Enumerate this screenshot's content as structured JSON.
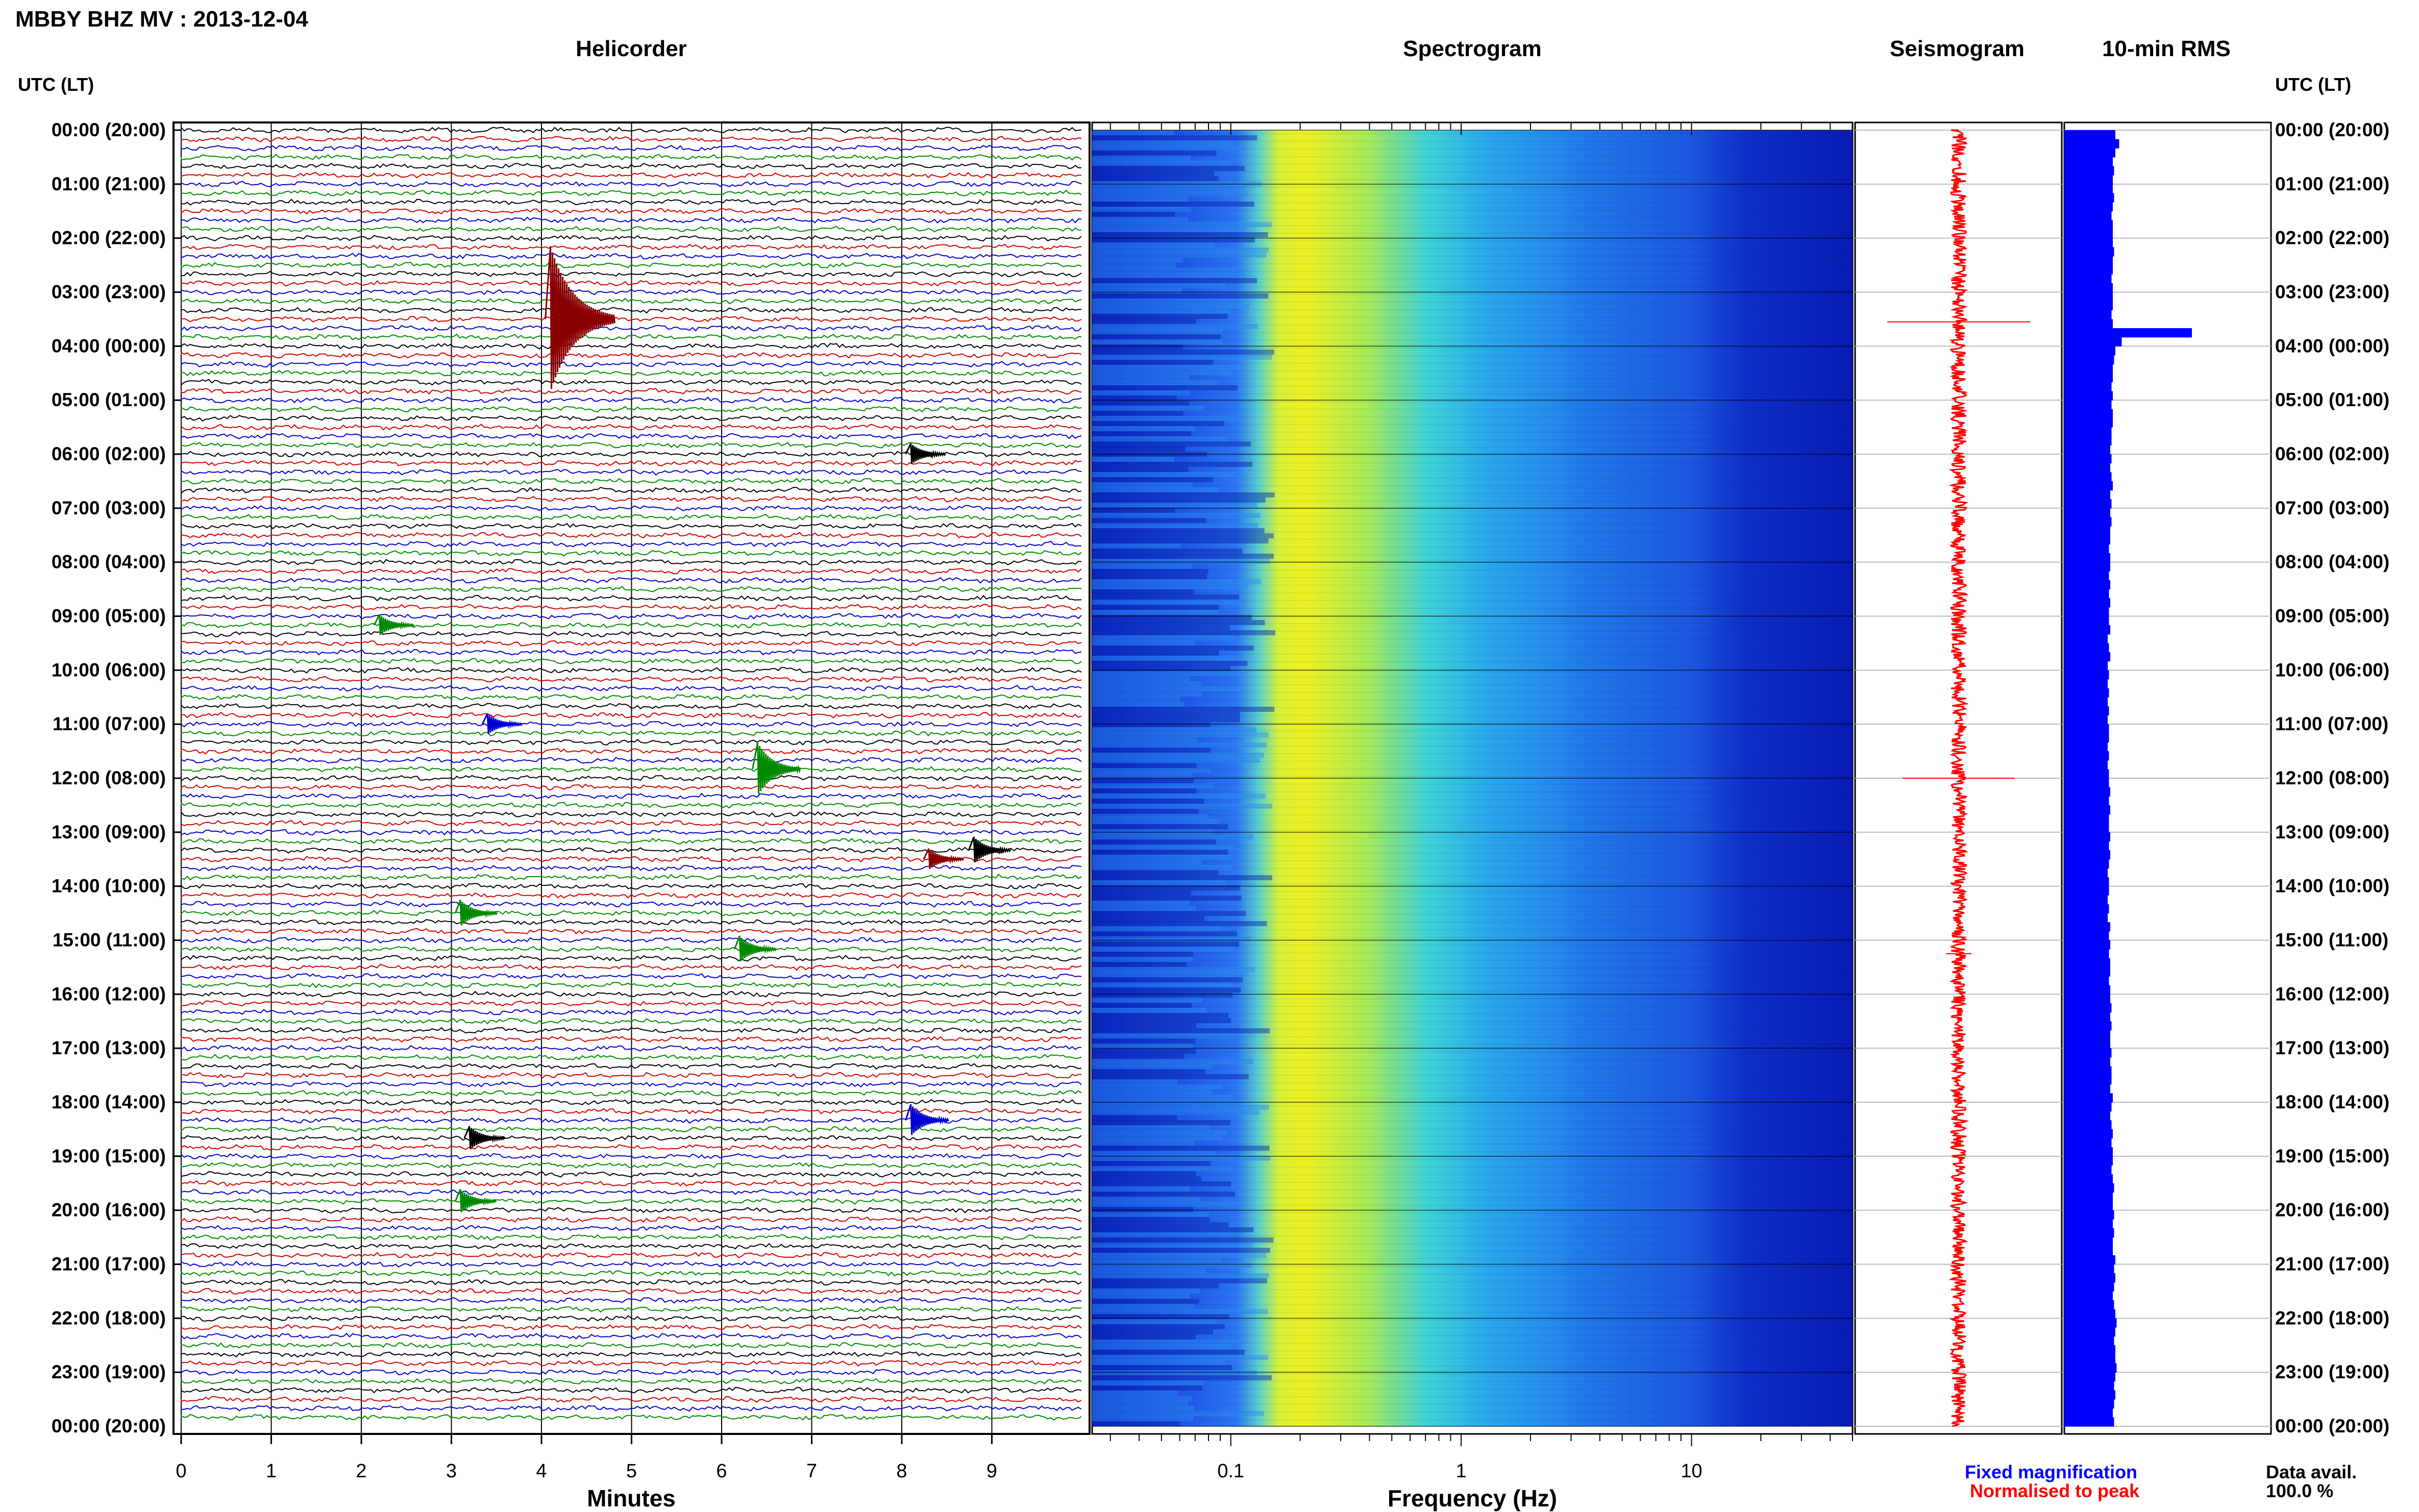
{
  "header": {
    "title": "MBBY BHZ MV : 2013-12-04"
  },
  "panels": {
    "helicorder": "Helicorder",
    "spectrogram": "Spectrogram",
    "seismogram": "Seismogram",
    "rms": "10-min RMS"
  },
  "axis": {
    "utc_label": "UTC (LT)",
    "minutes_label": "Minutes",
    "freq_label": "Frequency (Hz)"
  },
  "legend": {
    "fixed": "Fixed magnification",
    "normalised": "Normalised to peak",
    "data_avail_label": "Data avail.",
    "data_avail_value": "100.0 %"
  },
  "colors": {
    "trace_cycle": [
      "#000000",
      "#d40000",
      "#0000d4",
      "#008a00"
    ],
    "fixed": "#0000ff",
    "normalised": "#ff0000",
    "rms_bar": "#0000ff"
  },
  "chart_data": [
    {
      "type": "line",
      "name": "helicorder",
      "title": "Helicorder",
      "xlabel": "Minutes",
      "ylabel": "UTC (LT)",
      "xlim": [
        0,
        10
      ],
      "x_ticks": [
        0,
        1,
        2,
        3,
        4,
        5,
        6,
        7,
        8,
        9
      ],
      "y_tick_labels": [
        "00:00 (20:00)",
        "01:00 (21:00)",
        "02:00 (22:00)",
        "03:00 (23:00)",
        "04:00 (00:00)",
        "05:00 (01:00)",
        "06:00 (02:00)",
        "07:00 (03:00)",
        "08:00 (04:00)",
        "09:00 (05:00)",
        "10:00 (06:00)",
        "11:00 (07:00)",
        "12:00 (08:00)",
        "13:00 (09:00)",
        "14:00 (10:00)",
        "15:00 (11:00)",
        "16:00 (12:00)",
        "17:00 (13:00)",
        "18:00 (14:00)",
        "19:00 (15:00)",
        "20:00 (16:00)",
        "21:00 (17:00)",
        "22:00 (18:00)",
        "23:00 (19:00)",
        "00:00 (20:00)"
      ],
      "traces_per_hour": 6,
      "events": [
        {
          "hour": 3.5,
          "minute": 4.1,
          "amp": 5.5
        },
        {
          "hour": 6.0,
          "minute": 8.1,
          "amp": 0.8
        },
        {
          "hour": 9.1,
          "minute": 2.2,
          "amp": 0.8
        },
        {
          "hour": 11.0,
          "minute": 3.4,
          "amp": 0.8
        },
        {
          "hour": 11.8,
          "minute": 6.4,
          "amp": 2.0
        },
        {
          "hour": 13.4,
          "minute": 8.8,
          "amp": 1.0
        },
        {
          "hour": 13.5,
          "minute": 8.3,
          "amp": 0.8
        },
        {
          "hour": 14.5,
          "minute": 3.1,
          "amp": 1.0
        },
        {
          "hour": 15.1,
          "minute": 6.2,
          "amp": 1.0
        },
        {
          "hour": 18.3,
          "minute": 8.1,
          "amp": 1.2
        },
        {
          "hour": 18.7,
          "minute": 3.2,
          "amp": 0.9
        },
        {
          "hour": 19.9,
          "minute": 3.1,
          "amp": 0.9
        }
      ]
    },
    {
      "type": "heatmap",
      "name": "spectrogram",
      "title": "Spectrogram",
      "xlabel": "Frequency (Hz)",
      "x_scale": "log",
      "xlim": [
        0.025,
        50
      ],
      "x_tick_labels": [
        "0.1",
        "1",
        "10"
      ],
      "x_tick_values": [
        0.1,
        1,
        10
      ],
      "ylim_hours": [
        0,
        24
      ]
    },
    {
      "type": "line",
      "name": "seismogram",
      "title": "Seismogram",
      "series": [
        {
          "name": "Fixed magnification",
          "color": "#0000ff"
        },
        {
          "name": "Normalised to peak",
          "color": "#ff0000"
        }
      ],
      "spikes_hours": [
        3.55,
        12.0,
        15.25
      ]
    },
    {
      "type": "bar",
      "name": "rms",
      "title": "10-min RMS",
      "orientation": "horizontal",
      "bin_minutes": 10,
      "values": [
        0.4,
        0.43,
        0.4,
        0.38,
        0.39,
        0.38,
        0.38,
        0.39,
        0.38,
        0.37,
        0.38,
        0.38,
        0.38,
        0.39,
        0.38,
        0.38,
        0.37,
        0.38,
        0.38,
        0.38,
        0.37,
        0.38,
        1.0,
        0.45,
        0.4,
        0.39,
        0.38,
        0.38,
        0.37,
        0.38,
        0.37,
        0.38,
        0.38,
        0.37,
        0.37,
        0.36,
        0.37,
        0.36,
        0.37,
        0.38,
        0.36,
        0.37,
        0.36,
        0.37,
        0.36,
        0.36,
        0.35,
        0.36,
        0.36,
        0.35,
        0.36,
        0.35,
        0.36,
        0.35,
        0.35,
        0.36,
        0.34,
        0.35,
        0.36,
        0.34,
        0.35,
        0.34,
        0.35,
        0.34,
        0.35,
        0.34,
        0.35,
        0.35,
        0.34,
        0.35,
        0.34,
        0.35,
        0.35,
        0.36,
        0.35,
        0.36,
        0.35,
        0.35,
        0.36,
        0.35,
        0.36,
        0.35,
        0.34,
        0.35,
        0.35,
        0.34,
        0.35,
        0.34,
        0.36,
        0.35,
        0.36,
        0.35,
        0.36,
        0.36,
        0.35,
        0.36,
        0.36,
        0.37,
        0.36,
        0.37,
        0.36,
        0.36,
        0.37,
        0.36,
        0.37,
        0.37,
        0.36,
        0.38,
        0.37,
        0.36,
        0.37,
        0.38,
        0.37,
        0.38,
        0.38,
        0.37,
        0.38,
        0.39,
        0.38,
        0.38,
        0.39,
        0.38,
        0.39,
        0.38,
        0.38,
        0.4,
        0.39,
        0.4,
        0.39,
        0.38,
        0.39,
        0.4,
        0.41,
        0.4,
        0.39,
        0.4,
        0.4,
        0.41,
        0.4,
        0.39,
        0.4,
        0.39,
        0.38,
        0.39
      ]
    }
  ]
}
